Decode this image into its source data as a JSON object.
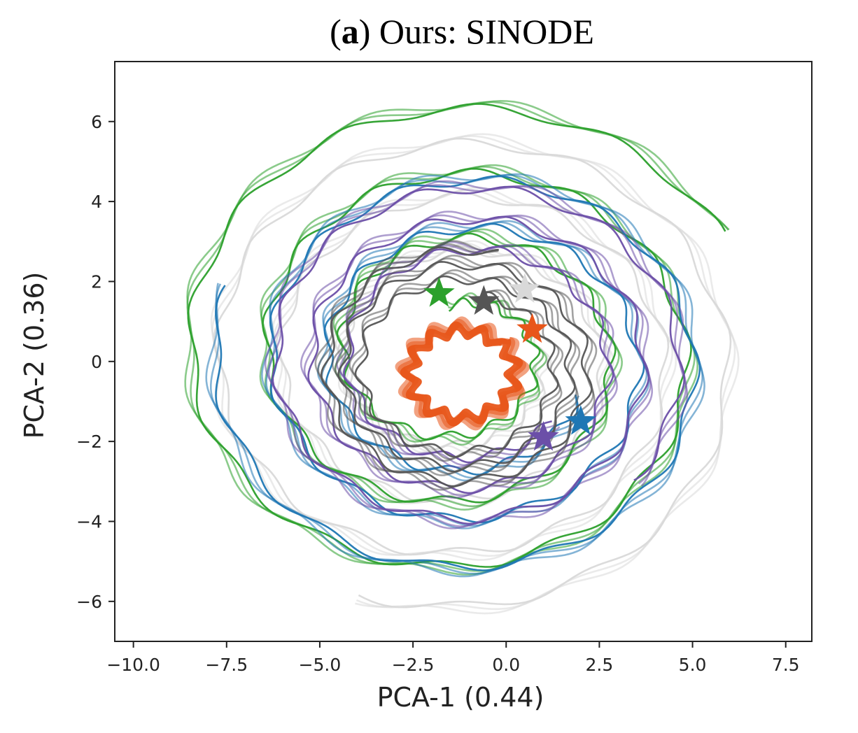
{
  "chart_data": {
    "type": "line",
    "title_prefix": "(",
    "title_bold": "a",
    "title_rest": ") Ours: SINODE",
    "xlabel": "PCA-1  (0.44)",
    "ylabel": "PCA-2  (0.36)",
    "xlim": [
      -10.5,
      8.2
    ],
    "ylim": [
      -7.0,
      7.5
    ],
    "xticks": [
      -10.0,
      -7.5,
      -5.0,
      -2.5,
      0.0,
      2.5,
      5.0,
      7.5
    ],
    "xtick_labels": [
      "−10.0",
      "−7.5",
      "−5.0",
      "−2.5",
      "0.0",
      "2.5",
      "5.0",
      "7.5"
    ],
    "yticks": [
      6,
      4,
      2,
      0,
      -2,
      -4,
      -6
    ],
    "ytick_labels": [
      "6",
      "4",
      "2",
      "0",
      "−2",
      "−4",
      "−6"
    ],
    "grid": false,
    "legend": "none",
    "marker": "star",
    "series": [
      {
        "color": "#d9d9d9",
        "cx": -1.3,
        "cy": 0.0,
        "r_start": 1.5,
        "r_end": 6.2,
        "turns": 3.5,
        "angle_start": 70,
        "start_point": [
          0.5,
          1.8
        ]
      },
      {
        "color": "#2ca02c",
        "cx": -1.3,
        "cy": 0.2,
        "r_start": 1.2,
        "r_end": 6.4,
        "turns": 3.2,
        "angle_start": 100,
        "start_point": [
          -1.8,
          1.7
        ]
      },
      {
        "color": "#1f77b4",
        "cx": -1.0,
        "cy": 0.0,
        "r_start": 2.5,
        "r_end": 5.5,
        "turns": 2.5,
        "angle_start": -20,
        "start_point": [
          2.0,
          -1.5
        ]
      },
      {
        "color": "#6b4fa8",
        "cx": -1.0,
        "cy": 0.0,
        "r_start": 2.3,
        "r_end": 4.6,
        "turns": 3.0,
        "angle_start": -40,
        "start_point": [
          1.0,
          -1.9
        ]
      },
      {
        "color": "#555555",
        "cx": -1.2,
        "cy": -0.2,
        "r_start": 1.9,
        "r_end": 3.0,
        "turns": 3.0,
        "angle_start": 75,
        "start_point": [
          -0.6,
          1.5
        ]
      },
      {
        "color": "#e8561a",
        "cx": -1.2,
        "cy": -0.3,
        "r_start": 1.2,
        "r_end": 1.0,
        "turns": 3.0,
        "angle_start": 40,
        "start_point": [
          0.7,
          0.8
        ]
      }
    ]
  }
}
